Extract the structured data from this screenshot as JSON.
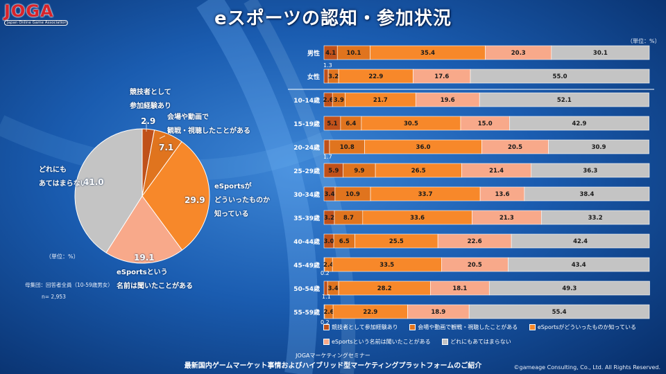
{
  "logo": {
    "mark": "JOGA",
    "subtitle": "Japan Online Game Association"
  },
  "title": "eスポーツの認知・参加状況",
  "pie": {
    "unit_label": "（単位：%）",
    "base_label": "母集団：回答者全員（10-59歳男女）",
    "n_label": "n= 2,953",
    "label_lines": [
      [
        "競技者として",
        "参加経験あり"
      ],
      [
        "会場や動画で",
        "観戦・視聴したことがある"
      ],
      [
        "eSportsが",
        "どういったものか",
        "知っている"
      ],
      [
        "eSportsという",
        "名前は聞いたことがある"
      ],
      [
        "どれにも",
        "あてはまらない"
      ]
    ]
  },
  "bar": {
    "unit_label": "（単位：%）",
    "rows": [
      {
        "label": "男性",
        "small": [
          "",
          ""
        ]
      },
      {
        "label": "女性",
        "small": [
          "1.3",
          ""
        ]
      },
      {
        "label": "10-14歳",
        "small": [
          "",
          ""
        ]
      },
      {
        "label": "15-19歳",
        "small": [
          "",
          ""
        ]
      },
      {
        "label": "20-24歳",
        "small": [
          "",
          "1.7"
        ]
      },
      {
        "label": "25-29歳",
        "small": [
          "",
          ""
        ]
      },
      {
        "label": "30-34歳",
        "small": [
          "",
          ""
        ]
      },
      {
        "label": "35-39歳",
        "small": [
          "",
          ""
        ]
      },
      {
        "label": "40-44歳",
        "small": [
          "",
          ""
        ]
      },
      {
        "label": "45-49歳",
        "small": [
          "",
          "0.2"
        ]
      },
      {
        "label": "50-54歳",
        "small": [
          "",
          "1.1"
        ]
      },
      {
        "label": "55-59歳",
        "small": [
          "",
          "0.2"
        ]
      }
    ]
  },
  "legend": {
    "items": [
      "競技者として参加経験あり",
      "会場や動画で観戦・視聴したことがある",
      "eSportsがどういったものか知っている",
      "eSportsという名前は聞いたことがある",
      "どれにもあてはまらない"
    ]
  },
  "colors": {
    "competitor": "#c0511a",
    "watched": "#e0741e",
    "know": "#f7882a",
    "heard": "#f8a98a",
    "none": "#c4c4c4"
  },
  "footer": {
    "seminar": "JOGAマーケティングセミナー",
    "subtitle": "最新国内ゲームマーケット事情およびハイブリッド型マーケティングプラットフォームのご紹介",
    "copyright": "©gameage Consulting, Co., Ltd. All Rights Reserved."
  },
  "chart_data": [
    {
      "type": "pie",
      "title": "",
      "unit": "%",
      "labels": [
        "競技者として参加経験あり",
        "会場や動画で観戦・視聴したことがある",
        "eSportsがどういったものか知っている",
        "eSportsという名前は聞いたことがある",
        "どれにもあてはまらない"
      ],
      "value_labels": [
        "2.9",
        "7.1",
        "29.9",
        "19.1",
        "41.0"
      ],
      "values": [
        2.9,
        7.1,
        29.9,
        19.1,
        41.0
      ]
    },
    {
      "type": "bar",
      "orientation": "horizontal",
      "stacked": true,
      "unit": "%",
      "categories": [
        "男性",
        "女性",
        "10-14歳",
        "15-19歳",
        "20-24歳",
        "25-29歳",
        "30-34歳",
        "35-39歳",
        "40-44歳",
        "45-49歳",
        "50-54歳",
        "55-59歳"
      ],
      "series": [
        {
          "name": "競技者として参加経験あり",
          "values": [
            4.1,
            1.3,
            2.6,
            5.1,
            1.7,
            5.9,
            3.4,
            3.2,
            3.0,
            0.2,
            1.1,
            0.2
          ],
          "value_labels": [
            "4.1",
            "",
            "2.6",
            "5.1",
            "",
            "5.9",
            "3.4",
            "3.2",
            "3.0",
            "",
            "",
            ""
          ]
        },
        {
          "name": "会場や動画で観戦・視聴したことがある",
          "values": [
            10.1,
            3.2,
            3.9,
            6.4,
            10.8,
            9.9,
            10.9,
            8.7,
            6.5,
            2.4,
            3.4,
            2.6
          ],
          "value_labels": [
            "10.1",
            "3.2",
            "3.9",
            "6.4",
            "10.8",
            "9.9",
            "10.9",
            "8.7",
            "6.5",
            "2.4",
            "3.4",
            "2.6"
          ]
        },
        {
          "name": "eSportsがどういったものか知っている",
          "values": [
            35.4,
            22.9,
            21.7,
            30.5,
            36.0,
            26.5,
            33.7,
            33.6,
            25.5,
            33.5,
            28.2,
            22.9
          ],
          "value_labels": [
            "35.4",
            "22.9",
            "21.7",
            "30.5",
            "36.0",
            "26.5",
            "33.7",
            "33.6",
            "25.5",
            "33.5",
            "28.2",
            "22.9"
          ]
        },
        {
          "name": "eSportsという名前は聞いたことがある",
          "values": [
            20.3,
            17.6,
            19.6,
            15.0,
            20.5,
            21.4,
            13.6,
            21.3,
            22.6,
            20.5,
            18.1,
            18.9
          ],
          "value_labels": [
            "20.3",
            "17.6",
            "19.6",
            "15.0",
            "20.5",
            "21.4",
            "13.6",
            "21.3",
            "22.6",
            "20.5",
            "18.1",
            "18.9"
          ]
        },
        {
          "name": "どれにもあてはまらない",
          "values": [
            30.1,
            55.0,
            52.1,
            42.9,
            30.9,
            36.3,
            38.4,
            33.2,
            42.4,
            43.4,
            49.3,
            55.4
          ],
          "value_labels": [
            "30.1",
            "55.0",
            "52.1",
            "42.9",
            "30.9",
            "36.3",
            "38.4",
            "33.2",
            "42.4",
            "43.4",
            "49.3",
            "55.4"
          ]
        }
      ],
      "xlim": [
        0,
        100
      ]
    }
  ]
}
